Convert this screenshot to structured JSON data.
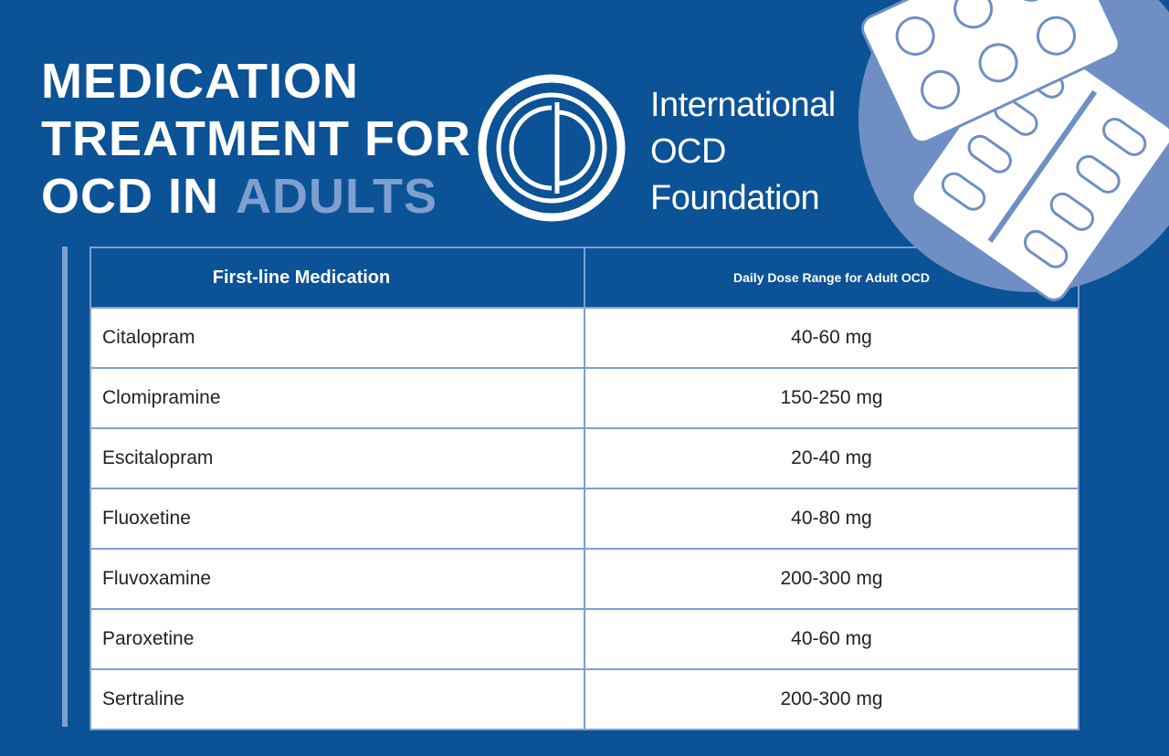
{
  "header": {
    "title_lines": [
      "MEDICATION",
      "TREATMENT FOR",
      "OCD IN"
    ],
    "title_highlight": "ADULTS"
  },
  "logo": {
    "lines": [
      "International",
      "OCD",
      "Foundation"
    ]
  },
  "table": {
    "columns": [
      "First-line Medication",
      "Daily Dose Range for Adult OCD"
    ],
    "rows": [
      [
        "Citalopram",
        "40-60 mg"
      ],
      [
        "Clomipramine",
        "150-250 mg"
      ],
      [
        "Escitalopram",
        "20-40 mg"
      ],
      [
        "Fluoxetine",
        "40-80 mg"
      ],
      [
        "Fluvoxamine",
        "200-300 mg"
      ],
      [
        "Paroxetine",
        "40-60 mg"
      ],
      [
        "Sertraline",
        "200-300 mg"
      ]
    ]
  }
}
